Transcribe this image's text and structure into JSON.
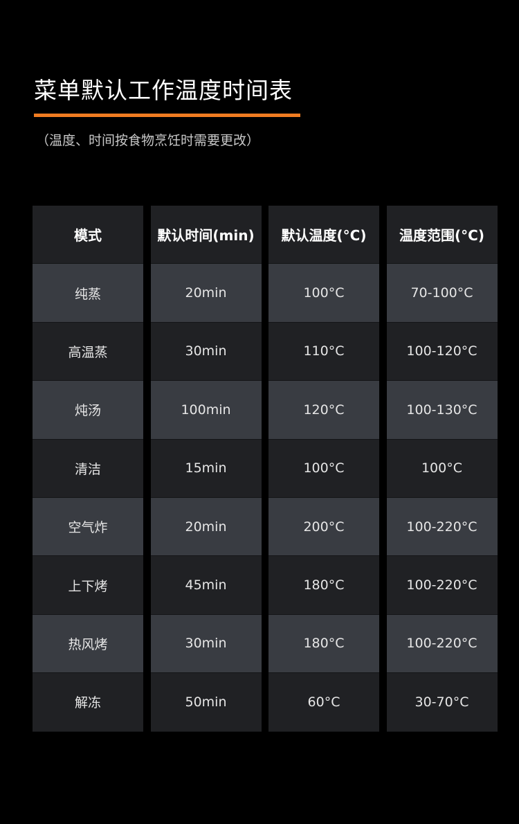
{
  "title": "菜单默认工作温度时间表",
  "subtitle": "（温度、时间按食物烹饪时需要更改）",
  "accent_color": "#f07c21",
  "table": {
    "headers": [
      "模式",
      "默认时间(min)",
      "默认温度(°C)",
      "温度范围(°C)"
    ],
    "rows": [
      [
        "纯蒸",
        "20min",
        "100°C",
        "70-100°C"
      ],
      [
        "高温蒸",
        "30min",
        "110°C",
        "100-120°C"
      ],
      [
        "炖汤",
        "100min",
        "120°C",
        "100-130°C"
      ],
      [
        "清洁",
        "15min",
        "100°C",
        "100°C"
      ],
      [
        "空气炸",
        "20min",
        "200°C",
        "100-220°C"
      ],
      [
        "上下烤",
        "45min",
        "180°C",
        "100-220°C"
      ],
      [
        "热风烤",
        "30min",
        "180°C",
        "100-220°C"
      ],
      [
        "解冻",
        "50min",
        "60°C",
        "30-70°C"
      ]
    ]
  }
}
